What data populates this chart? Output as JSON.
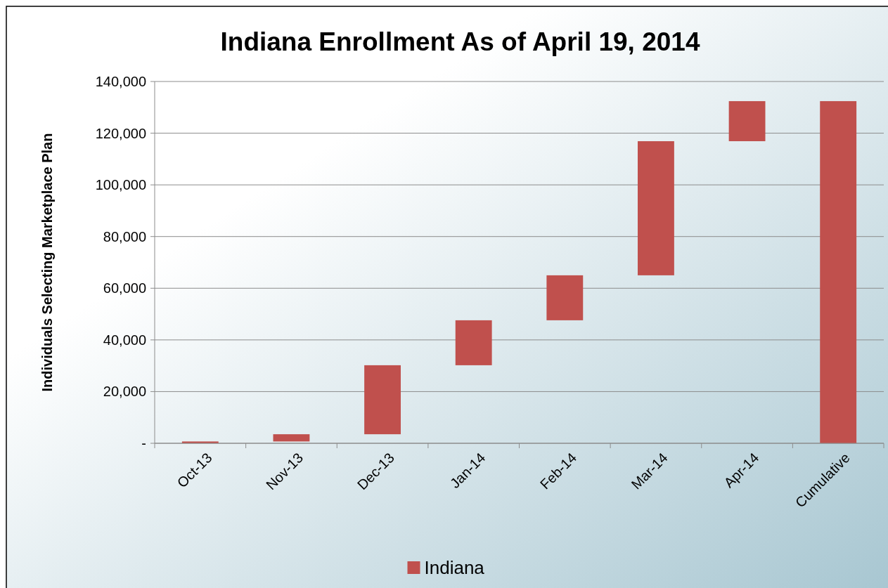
{
  "chart_data": {
    "type": "bar",
    "title": "Indiana Enrollment As of April 19, 2014",
    "ylabel": "Individuals Selecting Marketplace Plan",
    "categories": [
      "Oct-13",
      "Nov-13",
      "Dec-13",
      "Jan-14",
      "Feb-14",
      "Mar-14",
      "Apr-14",
      "Cumulative"
    ],
    "series": [
      {
        "name": "Indiana",
        "color": "#c0504d",
        "values": [
          700,
          2800,
          26700,
          17400,
          17400,
          51900,
          15500,
          132400
        ],
        "base": [
          0,
          700,
          3500,
          30200,
          47600,
          65000,
          116900,
          0
        ]
      }
    ],
    "ylim": [
      0,
      140000
    ],
    "yticks": [
      {
        "value": 0,
        "label": "-"
      },
      {
        "value": 20000,
        "label": "20,000"
      },
      {
        "value": 40000,
        "label": "40,000"
      },
      {
        "value": 60000,
        "label": "60,000"
      },
      {
        "value": 80000,
        "label": "80,000"
      },
      {
        "value": 100000,
        "label": "100,000"
      },
      {
        "value": 120000,
        "label": "120,000"
      },
      {
        "value": 140000,
        "label": "140,000"
      }
    ],
    "grid": "y",
    "legend": "bottom"
  }
}
